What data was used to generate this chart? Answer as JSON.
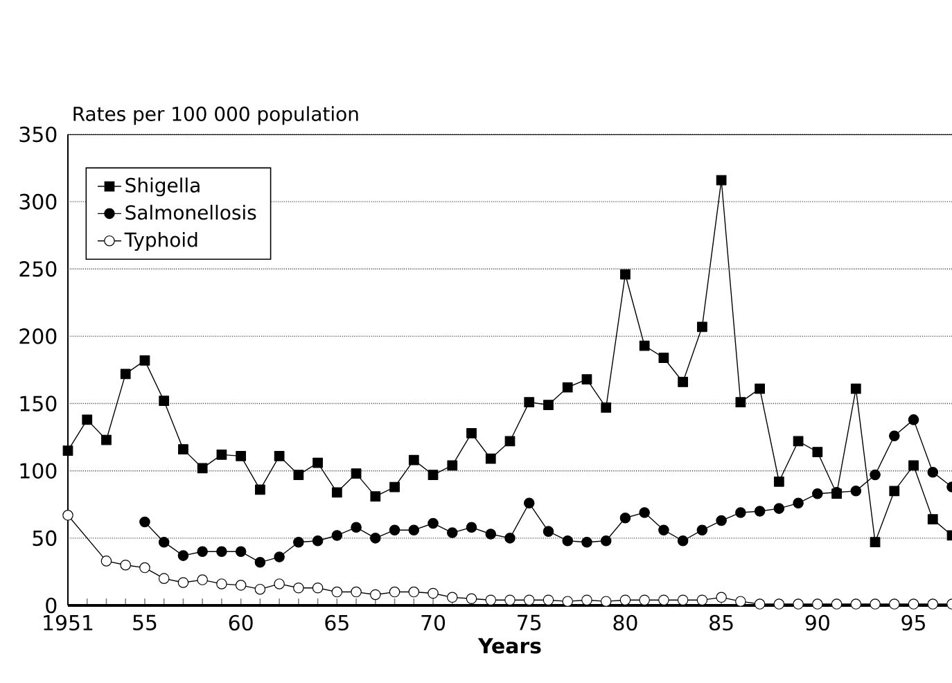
{
  "chart_data": {
    "type": "line",
    "ylabel": "Rates per 100 000 population",
    "xlabel": "Years",
    "xlim": [
      1951,
      1997
    ],
    "ylim": [
      0,
      350
    ],
    "yticks": [
      0,
      50,
      100,
      150,
      200,
      250,
      300,
      350
    ],
    "xticks": [
      {
        "value": 1951,
        "label": "1951"
      },
      {
        "value": 1952,
        "label": null
      },
      {
        "value": 1953,
        "label": null
      },
      {
        "value": 1954,
        "label": null
      },
      {
        "value": 1955,
        "label": "55"
      },
      {
        "value": 1956,
        "label": null
      },
      {
        "value": 1957,
        "label": null
      },
      {
        "value": 1958,
        "label": null
      },
      {
        "value": 1959,
        "label": null
      },
      {
        "value": 1960,
        "label": "60"
      },
      {
        "value": 1961,
        "label": null
      },
      {
        "value": 1962,
        "label": null
      },
      {
        "value": 1963,
        "label": null
      },
      {
        "value": 1964,
        "label": null
      },
      {
        "value": 1965,
        "label": "65"
      },
      {
        "value": 1966,
        "label": null
      },
      {
        "value": 1967,
        "label": null
      },
      {
        "value": 1968,
        "label": null
      },
      {
        "value": 1969,
        "label": null
      },
      {
        "value": 1970,
        "label": "70"
      },
      {
        "value": 1971,
        "label": null
      },
      {
        "value": 1972,
        "label": null
      },
      {
        "value": 1973,
        "label": null
      },
      {
        "value": 1974,
        "label": null
      },
      {
        "value": 1975,
        "label": "75"
      },
      {
        "value": 1976,
        "label": null
      },
      {
        "value": 1977,
        "label": null
      },
      {
        "value": 1978,
        "label": null
      },
      {
        "value": 1979,
        "label": null
      },
      {
        "value": 1980,
        "label": "80"
      },
      {
        "value": 1981,
        "label": null
      },
      {
        "value": 1982,
        "label": null
      },
      {
        "value": 1983,
        "label": null
      },
      {
        "value": 1984,
        "label": null
      },
      {
        "value": 1985,
        "label": "85"
      },
      {
        "value": 1986,
        "label": null
      },
      {
        "value": 1987,
        "label": null
      },
      {
        "value": 1988,
        "label": null
      },
      {
        "value": 1989,
        "label": null
      },
      {
        "value": 1990,
        "label": "90"
      },
      {
        "value": 1991,
        "label": null
      },
      {
        "value": 1992,
        "label": null
      },
      {
        "value": 1993,
        "label": null
      },
      {
        "value": 1994,
        "label": null
      },
      {
        "value": 1995,
        "label": "95"
      },
      {
        "value": 1996,
        "label": null
      }
    ],
    "grid": "y",
    "legend": "top left",
    "line_style": "solid",
    "series": [
      {
        "name": "Shigella",
        "color": "#000000",
        "marker": "square",
        "x": [
          1951,
          1952,
          1953,
          1954,
          1955,
          1956,
          1957,
          1958,
          1959,
          1960,
          1961,
          1962,
          1963,
          1964,
          1965,
          1966,
          1967,
          1968,
          1969,
          1970,
          1971,
          1972,
          1973,
          1974,
          1975,
          1976,
          1977,
          1978,
          1979,
          1980,
          1981,
          1982,
          1983,
          1984,
          1985,
          1986,
          1987,
          1988,
          1989,
          1990,
          1991,
          1992,
          1993,
          1994,
          1995,
          1996,
          1997
        ],
        "values": [
          115,
          138,
          123,
          172,
          182,
          152,
          116,
          102,
          112,
          111,
          86,
          111,
          97,
          106,
          84,
          98,
          81,
          88,
          108,
          97,
          104,
          128,
          109,
          122,
          151,
          149,
          162,
          168,
          147,
          246,
          193,
          184,
          166,
          207,
          316,
          151,
          161,
          92,
          122,
          114,
          83,
          161,
          47,
          85,
          104,
          64,
          52
        ]
      },
      {
        "name": "Salmonellosis",
        "color": "#000000",
        "marker": "circle",
        "x": [
          1955,
          1956,
          1957,
          1958,
          1959,
          1960,
          1961,
          1962,
          1963,
          1964,
          1965,
          1966,
          1967,
          1968,
          1969,
          1970,
          1971,
          1972,
          1973,
          1974,
          1975,
          1976,
          1977,
          1978,
          1979,
          1980,
          1981,
          1982,
          1983,
          1984,
          1985,
          1986,
          1987,
          1988,
          1989,
          1990,
          1991,
          1992,
          1993,
          1994,
          1995,
          1996,
          1997
        ],
        "values": [
          62,
          47,
          37,
          40,
          40,
          40,
          32,
          36,
          47,
          48,
          52,
          58,
          50,
          56,
          56,
          61,
          54,
          58,
          53,
          50,
          76,
          55,
          48,
          47,
          48,
          65,
          69,
          56,
          48,
          56,
          63,
          69,
          70,
          72,
          76,
          83,
          84,
          85,
          97,
          126,
          138,
          99,
          88
        ]
      },
      {
        "name": "Typhoid",
        "color": "#ffffff",
        "marker": "circle",
        "x": [
          1951,
          1953,
          1954,
          1955,
          1956,
          1957,
          1958,
          1959,
          1960,
          1961,
          1962,
          1963,
          1964,
          1965,
          1966,
          1967,
          1968,
          1969,
          1970,
          1971,
          1972,
          1973,
          1974,
          1975,
          1976,
          1977,
          1978,
          1979,
          1980,
          1981,
          1982,
          1983,
          1984,
          1985,
          1986,
          1987,
          1988,
          1989,
          1990,
          1991,
          1992,
          1993,
          1994,
          1995,
          1996,
          1997
        ],
        "values": [
          67,
          33,
          30,
          28,
          20,
          17,
          19,
          16,
          15,
          12,
          16,
          13,
          13,
          10,
          10,
          8,
          10,
          10,
          9,
          6,
          5,
          4,
          4,
          4,
          4,
          3,
          4,
          3,
          4,
          4,
          4,
          4,
          4,
          6,
          3,
          1,
          1,
          1,
          1,
          1,
          1,
          1,
          1,
          1,
          1,
          1
        ]
      }
    ]
  }
}
